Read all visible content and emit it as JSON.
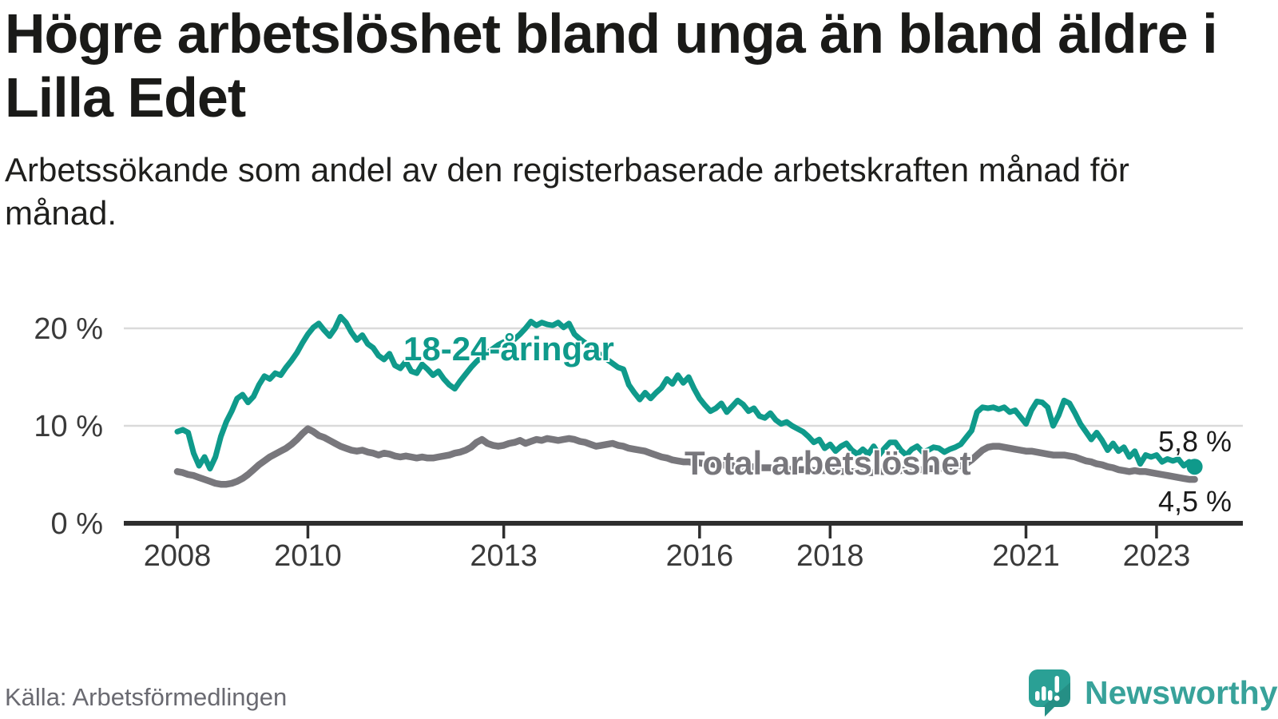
{
  "header": {
    "title": "Högre arbetslöshet bland unga än bland äldre i Lilla Edet",
    "subtitle": "Arbetssökande som andel av den registerbaserade arbetskraften månad för månad."
  },
  "footer": {
    "source": "Källa: Arbetsförmedlingen",
    "brand": "Newsworthy"
  },
  "colors": {
    "young": "#0f9a8b",
    "total": "#78777c",
    "axis": "#2e2e2e",
    "grid": "#dadada",
    "tick_label": "#3a3a3a",
    "end_label": "#1b1b1b",
    "logo": "#38a29a"
  },
  "chart_data": {
    "type": "line",
    "unit": "%",
    "frequency": "monthly",
    "start": {
      "year": 2008,
      "month": 1
    },
    "end": {
      "year": 2023,
      "month": 8
    },
    "ylim": [
      0,
      22
    ],
    "grid": "horizontal",
    "y_ticks": [
      {
        "value": 0,
        "label": "0 %"
      },
      {
        "value": 10,
        "label": "10 %"
      },
      {
        "value": 20,
        "label": "20 %"
      }
    ],
    "x_ticks": [
      {
        "year": 2008,
        "label": "2008"
      },
      {
        "year": 2010,
        "label": "2010"
      },
      {
        "year": 2013,
        "label": "2013"
      },
      {
        "year": 2016,
        "label": "2016"
      },
      {
        "year": 2018,
        "label": "2018"
      },
      {
        "year": 2021,
        "label": "2021"
      },
      {
        "year": 2023,
        "label": "2023"
      }
    ],
    "series": [
      {
        "name": "18-24-åringar",
        "color": "#0f9a8b",
        "end_label": "5,8 %",
        "end_value": 5.8,
        "values": [
          9.4,
          9.6,
          9.3,
          7.2,
          5.9,
          6.8,
          5.6,
          6.8,
          8.9,
          10.4,
          11.5,
          12.8,
          13.2,
          12.4,
          13.0,
          14.2,
          15.1,
          14.8,
          15.4,
          15.2,
          16.0,
          16.7,
          17.5,
          18.5,
          19.4,
          20.1,
          20.5,
          19.8,
          19.2,
          20.0,
          21.2,
          20.6,
          19.6,
          18.8,
          19.3,
          18.4,
          18.0,
          17.2,
          16.8,
          17.4,
          16.2,
          15.9,
          16.6,
          15.6,
          15.4,
          16.3,
          15.8,
          15.2,
          15.6,
          14.8,
          14.2,
          13.8,
          14.6,
          15.3,
          16.0,
          16.6,
          17.1,
          17.5,
          17.9,
          18.3,
          18.6,
          18.3,
          18.9,
          19.4,
          20.0,
          20.7,
          20.3,
          20.6,
          20.4,
          20.3,
          20.6,
          20.1,
          20.5,
          19.4,
          18.9,
          18.5,
          18.0,
          17.6,
          17.2,
          16.8,
          16.4,
          16.0,
          15.8,
          14.2,
          13.4,
          12.7,
          13.4,
          12.8,
          13.4,
          13.9,
          14.8,
          14.3,
          15.2,
          14.4,
          15.0,
          13.8,
          12.8,
          12.1,
          11.5,
          11.8,
          12.3,
          11.4,
          12.0,
          12.6,
          12.2,
          11.5,
          11.8,
          11.0,
          10.8,
          11.3,
          10.6,
          10.2,
          10.4,
          10.0,
          9.7,
          9.4,
          8.9,
          8.3,
          8.6,
          7.7,
          8.1,
          7.4,
          7.9,
          8.2,
          7.5,
          7.1,
          7.6,
          7.1,
          7.9,
          7.0,
          7.7,
          8.3,
          8.3,
          7.5,
          7.0,
          7.6,
          7.9,
          7.3,
          7.5,
          7.8,
          7.7,
          7.3,
          7.6,
          7.8,
          8.1,
          8.8,
          9.5,
          11.4,
          11.9,
          11.8,
          11.9,
          11.7,
          11.9,
          11.4,
          11.6,
          10.9,
          10.2,
          11.6,
          12.5,
          12.4,
          11.9,
          10.0,
          11.1,
          12.6,
          12.3,
          11.3,
          10.2,
          9.4,
          8.6,
          9.3,
          8.5,
          7.5,
          8.2,
          7.4,
          7.8,
          6.8,
          7.4,
          6.1,
          7.0,
          6.8,
          7.0,
          6.3,
          6.6,
          6.4,
          6.6,
          5.9,
          6.3,
          5.8
        ]
      },
      {
        "name": "Total arbetslöshet",
        "color": "#78777c",
        "end_label": "4,5 %",
        "end_value": 4.5,
        "values": [
          5.3,
          5.2,
          5.0,
          4.9,
          4.7,
          4.5,
          4.3,
          4.1,
          4.0,
          4.0,
          4.1,
          4.3,
          4.6,
          5.0,
          5.5,
          6.0,
          6.4,
          6.8,
          7.1,
          7.4,
          7.7,
          8.1,
          8.6,
          9.2,
          9.7,
          9.4,
          9.0,
          8.8,
          8.5,
          8.2,
          7.9,
          7.7,
          7.5,
          7.4,
          7.5,
          7.3,
          7.2,
          7.0,
          7.2,
          7.1,
          6.9,
          6.8,
          6.9,
          6.8,
          6.7,
          6.8,
          6.7,
          6.7,
          6.8,
          6.9,
          7.0,
          7.2,
          7.3,
          7.5,
          7.8,
          8.3,
          8.6,
          8.2,
          8.0,
          7.9,
          8.0,
          8.2,
          8.3,
          8.5,
          8.2,
          8.4,
          8.6,
          8.5,
          8.7,
          8.6,
          8.5,
          8.6,
          8.7,
          8.6,
          8.4,
          8.3,
          8.1,
          7.9,
          8.0,
          8.1,
          8.2,
          8.0,
          7.9,
          7.7,
          7.6,
          7.5,
          7.4,
          7.2,
          7.0,
          6.8,
          6.7,
          6.5,
          6.4,
          6.3,
          6.3,
          6.2,
          6.2,
          6.1,
          6.1,
          6.0,
          6.0,
          5.9,
          5.9,
          5.9,
          5.8,
          5.8,
          5.8,
          5.7,
          5.7,
          5.7,
          5.6,
          5.6,
          5.6,
          5.5,
          5.5,
          5.5,
          5.5,
          5.4,
          5.4,
          5.4,
          5.4,
          5.4,
          5.3,
          5.3,
          5.3,
          5.3,
          5.2,
          5.2,
          5.2,
          5.3,
          5.3,
          5.4,
          5.4,
          5.4,
          5.5,
          5.5,
          5.5,
          5.5,
          5.6,
          5.6,
          5.6,
          5.7,
          5.7,
          5.8,
          5.9,
          6.1,
          6.5,
          7.0,
          7.5,
          7.8,
          7.9,
          7.9,
          7.8,
          7.7,
          7.6,
          7.5,
          7.4,
          7.4,
          7.3,
          7.2,
          7.1,
          7.0,
          7.0,
          7.0,
          6.9,
          6.8,
          6.6,
          6.4,
          6.3,
          6.1,
          6.0,
          5.8,
          5.7,
          5.5,
          5.4,
          5.3,
          5.4,
          5.3,
          5.3,
          5.2,
          5.1,
          5.0,
          4.9,
          4.8,
          4.7,
          4.6,
          4.5,
          4.5
        ]
      }
    ]
  }
}
